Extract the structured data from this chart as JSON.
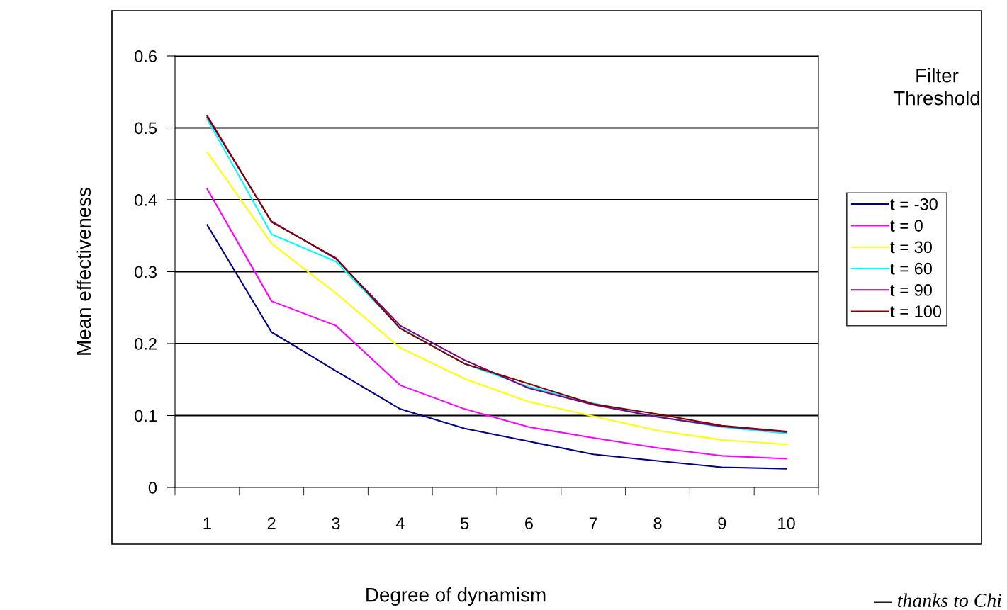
{
  "chart_data": {
    "type": "line",
    "xlabel": "Degree of dynamism",
    "ylabel": "Mean effectiveness",
    "legend_title": "Filter\nThreshold",
    "categories": [
      "1",
      "2",
      "3",
      "4",
      "5",
      "6",
      "7",
      "8",
      "9",
      "10"
    ],
    "series": [
      {
        "name": "t = -30",
        "color": "#000080",
        "values": [
          0.365,
          0.216,
          0.162,
          0.109,
          0.082,
          0.064,
          0.046,
          0.037,
          0.028,
          0.026
        ]
      },
      {
        "name": "t = 0",
        "color": "#ff00ff",
        "values": [
          0.415,
          0.259,
          0.225,
          0.142,
          0.109,
          0.084,
          0.069,
          0.055,
          0.044,
          0.04
        ]
      },
      {
        "name": "t = 30",
        "color": "#ffff00",
        "values": [
          0.466,
          0.339,
          0.27,
          0.194,
          0.151,
          0.119,
          0.099,
          0.079,
          0.066,
          0.06
        ]
      },
      {
        "name": "t = 60",
        "color": "#00ffff",
        "values": [
          0.512,
          0.352,
          0.314,
          0.222,
          0.172,
          0.14,
          0.117,
          0.098,
          0.084,
          0.075
        ]
      },
      {
        "name": "t = 90",
        "color": "#800080",
        "values": [
          0.515,
          0.37,
          0.318,
          0.225,
          0.177,
          0.138,
          0.115,
          0.098,
          0.085,
          0.077
        ]
      },
      {
        "name": "t = 100",
        "color": "#800000",
        "values": [
          0.517,
          0.369,
          0.319,
          0.221,
          0.172,
          0.144,
          0.116,
          0.102,
          0.086,
          0.078
        ]
      }
    ],
    "ylim": [
      0,
      0.6
    ],
    "yticks": [
      0,
      0.1,
      0.2,
      0.3,
      0.4,
      0.5,
      0.6
    ],
    "grid": "y",
    "legend": "right",
    "marker": "none",
    "line_style": "solid",
    "annotations": [
      "— thanks to Chi"
    ]
  }
}
